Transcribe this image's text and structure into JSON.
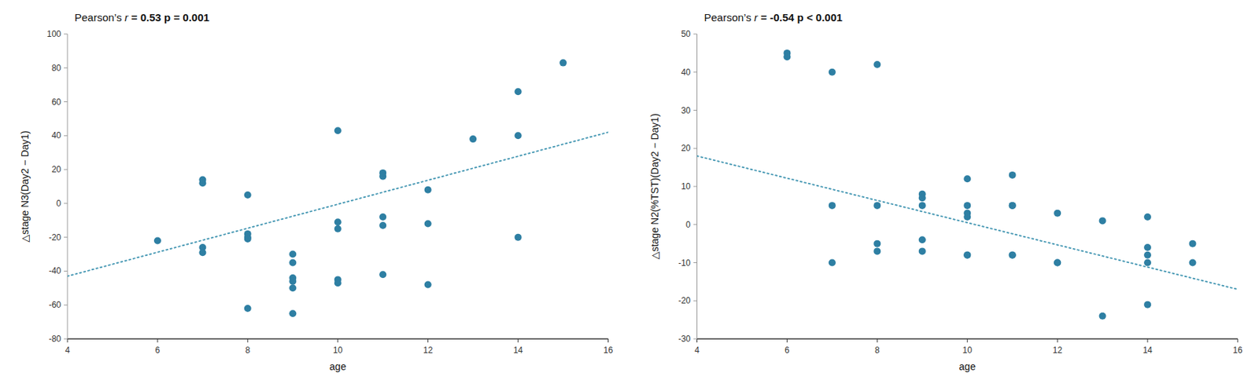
{
  "chart_data": [
    {
      "type": "scatter",
      "xlabel": "age",
      "ylabel": "△stage N3(Day2 − Day1)",
      "xlim": [
        4,
        16
      ],
      "ylim": [
        -80,
        100
      ],
      "xticks": [
        4,
        6,
        8,
        10,
        12,
        14,
        16
      ],
      "yticks": [
        -80,
        -60,
        -40,
        -20,
        0,
        20,
        40,
        60,
        80,
        100
      ],
      "grid": false,
      "annotation": [
        "Pearson’s ",
        "r",
        " = 0.53 p = 0.001"
      ],
      "series": [
        {
          "type": "scatter",
          "color": "#2e7fa3",
          "marker": "circle",
          "x": [
            6,
            7,
            7,
            7,
            7,
            8,
            8,
            8,
            8,
            8,
            9,
            9,
            9,
            9,
            9,
            9,
            10,
            10,
            10,
            10,
            10,
            11,
            11,
            11,
            11,
            11,
            12,
            12,
            12,
            13,
            14,
            14,
            14,
            15
          ],
          "values": [
            -22,
            12,
            14,
            -26,
            -29,
            -18,
            -20,
            -21,
            -62,
            5,
            -30,
            -35,
            -44,
            -46,
            -50,
            -65,
            43,
            -11,
            -15,
            -45,
            -47,
            18,
            16,
            -8,
            -13,
            -42,
            8,
            -12,
            -48,
            38,
            66,
            40,
            -20,
            83
          ]
        },
        {
          "type": "line",
          "color": "#4a9ab5",
          "line_style": "dotted",
          "x": [
            4,
            16
          ],
          "values": [
            -43,
            42
          ]
        }
      ]
    },
    {
      "type": "scatter",
      "xlabel": "age",
      "ylabel": "△stage N2(%TST)(Day2 − Day1)",
      "xlim": [
        4,
        16
      ],
      "ylim": [
        -30,
        50
      ],
      "xticks": [
        4,
        6,
        8,
        10,
        12,
        14,
        16
      ],
      "yticks": [
        -30,
        -20,
        -10,
        0,
        10,
        20,
        30,
        40,
        50
      ],
      "grid": false,
      "annotation": [
        "Pearson’s ",
        "r",
        " = -0.54 p < 0.001"
      ],
      "series": [
        {
          "type": "scatter",
          "color": "#2e7fa3",
          "marker": "circle",
          "x": [
            6,
            6,
            7,
            7,
            7,
            8,
            8,
            8,
            8,
            9,
            9,
            9,
            9,
            9,
            10,
            10,
            10,
            10,
            10,
            10,
            11,
            11,
            11,
            11,
            11,
            12,
            12,
            12,
            13,
            13,
            14,
            14,
            14,
            14,
            14,
            15,
            15
          ],
          "values": [
            45,
            44,
            40,
            5,
            -10,
            42,
            5,
            -5,
            -7,
            8,
            7,
            5,
            -4,
            -7,
            12,
            5,
            3,
            2,
            -8,
            -8,
            13,
            5,
            5,
            -8,
            -8,
            3,
            -10,
            -10,
            1,
            -24,
            2,
            -6,
            -8,
            -10,
            -21,
            -5,
            -10
          ]
        },
        {
          "type": "line",
          "color": "#4a9ab5",
          "line_style": "dotted",
          "x": [
            4,
            16
          ],
          "values": [
            18,
            -17
          ]
        }
      ]
    }
  ]
}
